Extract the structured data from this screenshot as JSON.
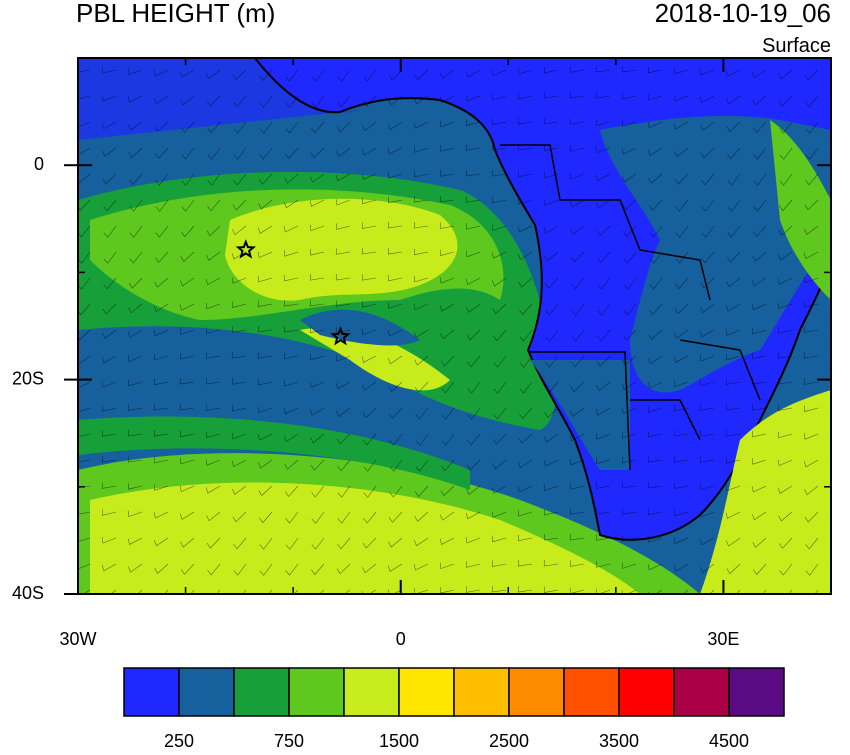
{
  "header": {
    "title": "PBL HEIGHT (m)",
    "time": "2018-10-19_06",
    "level": "Surface"
  },
  "map": {
    "xlim": [
      -30,
      40
    ],
    "ylim": [
      -40,
      10
    ],
    "xticks": [
      {
        "value": -30,
        "label": "30W"
      },
      0,
      {
        "value": 30,
        "label": "30E"
      }
    ],
    "yticks": [
      0,
      {
        "value": -20,
        "label": "20S"
      },
      {
        "value": -40,
        "label": "40S"
      }
    ],
    "xminor": [
      -20,
      -10,
      10,
      20,
      40
    ],
    "yminor": [
      10,
      -10,
      -30
    ],
    "markers": [
      {
        "lon": -14.4,
        "lat": -7.9
      },
      {
        "lon": -5.6,
        "lat": -16.0
      }
    ]
  },
  "colorbar": {
    "colors": [
      "#1e28ff",
      "#16609e",
      "#17a03a",
      "#5ec81e",
      "#c8eb1c",
      "#ffe600",
      "#ffbe00",
      "#ff8c00",
      "#ff5000",
      "#ff0000",
      "#aa0046",
      "#5a0a82"
    ],
    "labels": [
      250,
      750,
      1500,
      2500,
      3500,
      4500
    ]
  }
}
